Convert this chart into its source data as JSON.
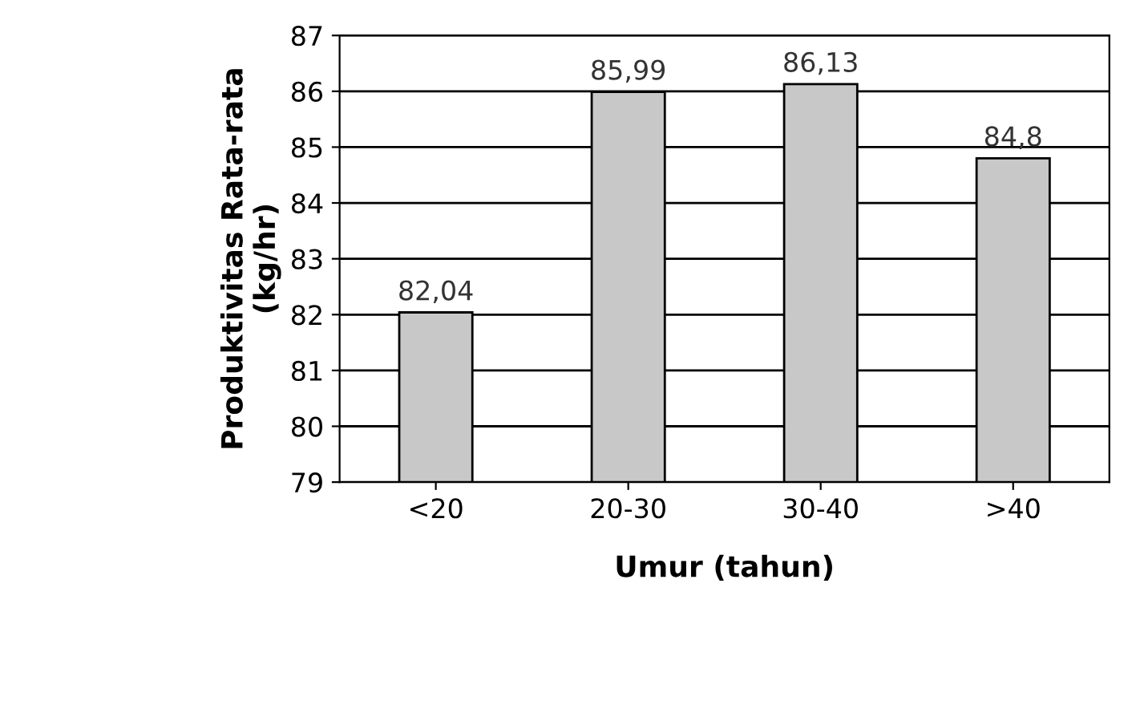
{
  "chart_data": {
    "type": "bar",
    "xlabel": "Umur (tahun)",
    "ylabel": "Produktivitas Rata-rata\n(kg/hr)",
    "categories": [
      "<20",
      "20-30",
      "30-40",
      ">40"
    ],
    "values": [
      82.04,
      85.99,
      86.13,
      84.8
    ],
    "value_labels": [
      "82,04",
      "85,99",
      "86,13",
      "84,8"
    ],
    "color": "#c8c8c8",
    "ylim": [
      79,
      87
    ],
    "yticks": [
      79,
      80,
      81,
      82,
      83,
      84,
      85,
      86,
      87
    ],
    "grid": "y"
  }
}
